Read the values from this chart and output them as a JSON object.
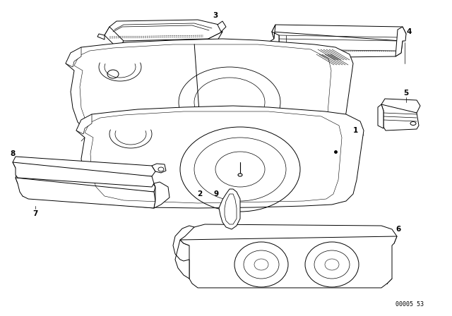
{
  "background_color": "#ffffff",
  "line_color": "#000000",
  "figure_width": 6.4,
  "figure_height": 4.48,
  "dpi": 100,
  "watermark": "00005 53",
  "label_fontsize": 7.5,
  "lw": 0.7
}
